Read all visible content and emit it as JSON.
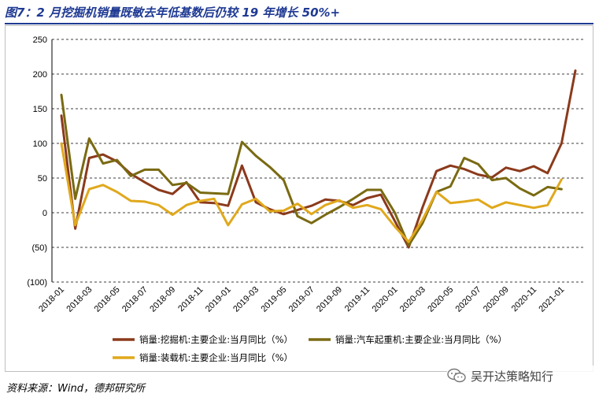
{
  "figure": {
    "title": "图7：2 月挖掘机销量既敏去年低基数后仍较 19 年增长 50%+",
    "source": "资料来源：Wind，德邦研究所",
    "watermark": "吴开达策略知行",
    "watermark_icon": "wechat-icon"
  },
  "chart_data": {
    "type": "line",
    "x": [
      "2018-01",
      "2018-02",
      "2018-03",
      "2018-04",
      "2018-05",
      "2018-06",
      "2018-07",
      "2018-08",
      "2018-09",
      "2018-10",
      "2018-11",
      "2018-12",
      "2019-01",
      "2019-02",
      "2019-03",
      "2019-04",
      "2019-05",
      "2019-06",
      "2019-07",
      "2019-08",
      "2019-09",
      "2019-10",
      "2019-11",
      "2019-12",
      "2020-01",
      "2020-02",
      "2020-03",
      "2020-04",
      "2020-05",
      "2020-06",
      "2020-07",
      "2020-08",
      "2020-09",
      "2020-10",
      "2020-11",
      "2020-12",
      "2021-01",
      "2021-02"
    ],
    "x_tick_labels": [
      "2018-01",
      "2018-03",
      "2018-05",
      "2018-07",
      "2018-09",
      "2018-11",
      "2019-01",
      "2019-03",
      "2019-05",
      "2019-07",
      "2019-09",
      "2019-11",
      "2020-01",
      "2020-03",
      "2020-05",
      "2020-07",
      "2020-09",
      "2020-11",
      "2021-01"
    ],
    "ylim": [
      -100,
      250
    ],
    "y_ticks": [
      -100,
      -50,
      0,
      50,
      100,
      150,
      200,
      250
    ],
    "y_tick_labels": [
      "(100)",
      "(50)",
      "0",
      "50",
      "100",
      "150",
      "200",
      "250"
    ],
    "grid": "horizontal-dashed",
    "legend": "bottom",
    "series": [
      {
        "name": "销量:挖掘机:主要企业:当月同比（%）",
        "color": "#8b3a1c",
        "values": [
          140,
          -23,
          79,
          84,
          74,
          56,
          44,
          33,
          27,
          44,
          15,
          14,
          10,
          68,
          15,
          5,
          -2,
          4,
          10,
          19,
          17,
          11,
          21,
          26,
          -12,
          -50,
          8,
          60,
          68,
          63,
          55,
          51,
          65,
          60,
          67,
          57,
          100,
          205
        ]
      },
      {
        "name": "销量:汽车起重机:主要企业:当月同比（%）",
        "color": "#7a6a12",
        "values": [
          170,
          20,
          107,
          71,
          76,
          53,
          62,
          62,
          40,
          43,
          29,
          28,
          27,
          102,
          82,
          66,
          47,
          -5,
          -15,
          -3,
          8,
          20,
          33,
          33,
          0,
          -47,
          -15,
          30,
          38,
          79,
          70,
          47,
          50,
          35,
          25,
          37,
          34,
          null
        ]
      },
      {
        "name": "销量:装载机:主要企业:当月同比（%）",
        "color": "#e0a81c",
        "values": [
          100,
          -18,
          34,
          40,
          30,
          17,
          16,
          11,
          -3,
          11,
          17,
          20,
          -18,
          12,
          20,
          2,
          3,
          13,
          -2,
          11,
          18,
          7,
          11,
          5,
          -20,
          -42,
          -10,
          30,
          14,
          16,
          19,
          7,
          15,
          11,
          7,
          11,
          48,
          null
        ]
      }
    ]
  }
}
